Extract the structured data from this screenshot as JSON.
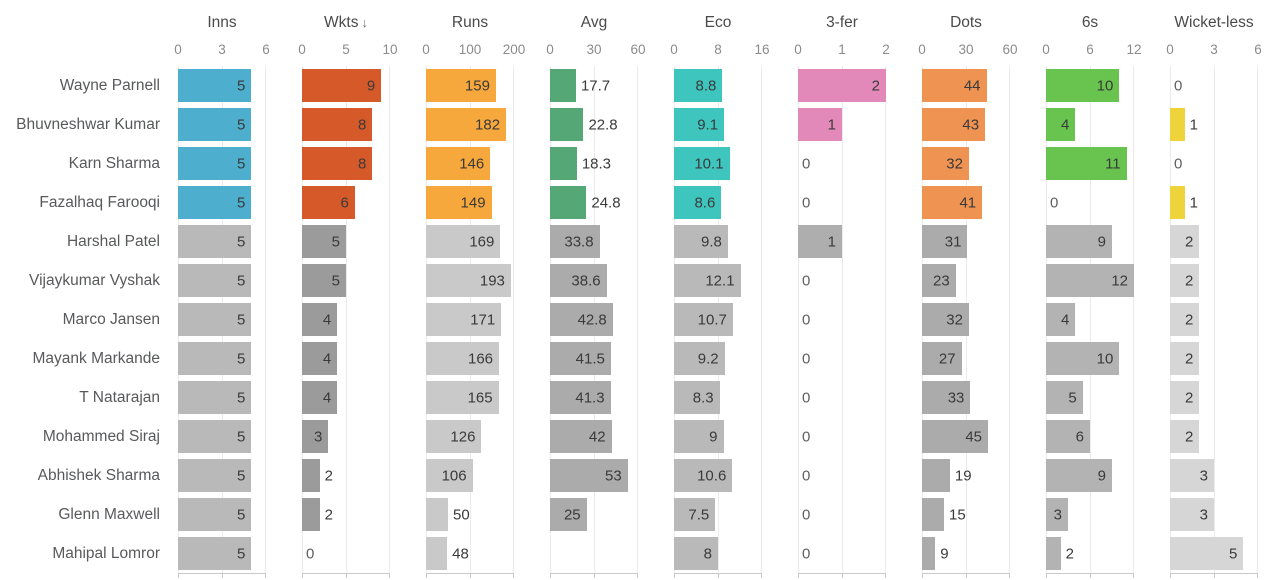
{
  "chart_data": {
    "type": "bar",
    "title": "",
    "note": "bowling stats leaderboard, one horizontal bar chart per metric column, sorted by Wkts descending, top 4 rows highlighted in color, remaining rows gray",
    "sort_icon": "↓",
    "highlight_rows": 4,
    "players": [
      "Wayne Parnell",
      "Bhuvneshwar Kumar",
      "Karn Sharma",
      "Fazalhaq Farooqi",
      "Harshal Patel",
      "Vijaykumar Vyshak",
      "Marco Jansen",
      "Mayank Markande",
      "T Natarajan",
      "Mohammed Siraj",
      "Abhishek Sharma",
      "Glenn Maxwell",
      "Mahipal Lomror"
    ],
    "columns": [
      {
        "label": "Inns",
        "sorted": false,
        "axis_max": 6,
        "ticks": [
          "0",
          "3",
          "6"
        ],
        "color": "#4daecd",
        "gray": "#b9b9b9",
        "values": [
          5,
          5,
          5,
          5,
          5,
          5,
          5,
          5,
          5,
          5,
          5,
          5,
          5
        ]
      },
      {
        "label": "Wkts",
        "sorted": true,
        "axis_max": 10,
        "ticks": [
          "0",
          "5",
          "10"
        ],
        "color": "#d65a29",
        "gray": "#9b9b9b",
        "values": [
          9,
          8,
          8,
          6,
          5,
          5,
          4,
          4,
          4,
          3,
          2,
          2,
          0
        ]
      },
      {
        "label": "Runs",
        "sorted": false,
        "axis_max": 200,
        "ticks": [
          "0",
          "100",
          "200"
        ],
        "color": "#f7a83c",
        "gray": "#c9c9c9",
        "values": [
          159,
          182,
          146,
          149,
          169,
          193,
          171,
          166,
          165,
          126,
          106,
          50,
          48
        ]
      },
      {
        "label": "Avg",
        "sorted": false,
        "axis_max": 60,
        "ticks": [
          "0",
          "30",
          "60"
        ],
        "color": "#55a876",
        "gray": "#ababab",
        "values": [
          17.7,
          22.8,
          18.3,
          24.8,
          33.8,
          38.6,
          42.8,
          41.5,
          41.3,
          42,
          53,
          25,
          null
        ]
      },
      {
        "label": "Eco",
        "sorted": false,
        "axis_max": 16,
        "ticks": [
          "0",
          "8",
          "16"
        ],
        "color": "#3ec6be",
        "gray": "#b9b9b9",
        "values": [
          8.8,
          9.1,
          10.1,
          8.6,
          9.8,
          12.1,
          10.7,
          9.2,
          8.3,
          9,
          10.6,
          7.5,
          8
        ]
      },
      {
        "label": "3-fer",
        "sorted": false,
        "axis_max": 2,
        "ticks": [
          "0",
          "1",
          "2"
        ],
        "color": "#e289b9",
        "gray": "#aeaeae",
        "values": [
          2,
          1,
          0,
          0,
          1,
          0,
          0,
          0,
          0,
          0,
          0,
          0,
          0
        ]
      },
      {
        "label": "Dots",
        "sorted": false,
        "axis_max": 60,
        "ticks": [
          "0",
          "30",
          "60"
        ],
        "color": "#ee9351",
        "gray": "#ababab",
        "values": [
          44,
          43,
          32,
          41,
          31,
          23,
          32,
          27,
          33,
          45,
          19,
          15,
          9
        ]
      },
      {
        "label": "6s",
        "sorted": false,
        "axis_max": 12,
        "ticks": [
          "0",
          "6",
          "12"
        ],
        "color": "#68c34f",
        "gray": "#b3b3b3",
        "values": [
          10,
          4,
          11,
          0,
          9,
          12,
          4,
          10,
          5,
          6,
          9,
          3,
          2
        ]
      },
      {
        "label": "Wicket-less",
        "sorted": false,
        "axis_max": 6,
        "ticks": [
          "0",
          "3",
          "6"
        ],
        "color": "#eed33b",
        "gray": "#d6d6d6",
        "values": [
          0,
          1,
          0,
          1,
          2,
          2,
          2,
          2,
          2,
          2,
          3,
          3,
          5
        ]
      }
    ]
  }
}
